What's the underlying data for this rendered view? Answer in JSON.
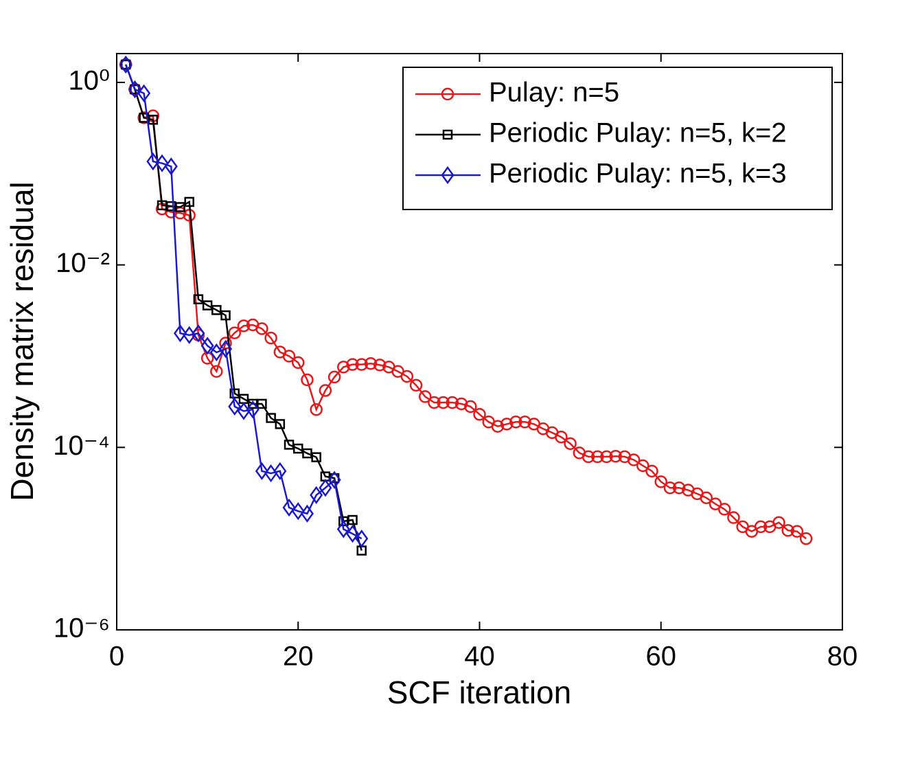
{
  "chart_data": {
    "type": "line",
    "x_label": "SCF iteration",
    "y_label": "Density matrix residual",
    "xlim": [
      0,
      80
    ],
    "xticks": [
      0,
      20,
      40,
      60,
      80
    ],
    "ylim": [
      1e-06,
      2.07
    ],
    "yticks": [
      {
        "value": 1,
        "label": "10⁰"
      },
      {
        "value": 0.01,
        "label": "10⁻²"
      },
      {
        "value": 0.0001,
        "label": "10⁻⁴"
      },
      {
        "value": 1e-06,
        "label": "10⁻⁶"
      }
    ],
    "y_scale": "log",
    "grid": false,
    "legend": "northeast",
    "series": [
      {
        "name": "Pulay: n=5",
        "color": "#e31a1c",
        "marker": "circle",
        "x": [
          1,
          2,
          3,
          4,
          5,
          6,
          7,
          8,
          9,
          10,
          11,
          12,
          13,
          14,
          15,
          16,
          17,
          18,
          19,
          20,
          21,
          22,
          23,
          24,
          25,
          26,
          27,
          28,
          29,
          30,
          31,
          32,
          33,
          34,
          35,
          36,
          37,
          38,
          39,
          40,
          41,
          42,
          43,
          44,
          45,
          46,
          47,
          48,
          49,
          50,
          51,
          52,
          53,
          54,
          55,
          56,
          57,
          58,
          59,
          60,
          61,
          62,
          63,
          64,
          65,
          66,
          67,
          68,
          69,
          70,
          71,
          72,
          73,
          74,
          75,
          76
        ],
        "values": [
          1.57,
          0.84,
          0.41,
          0.43,
          0.041,
          0.038,
          0.037,
          0.035,
          0.0017,
          0.00095,
          0.00068,
          0.00139,
          0.0018,
          0.00215,
          0.0022,
          0.002,
          0.00158,
          0.00111,
          0.001,
          0.00085,
          0.00055,
          0.00026,
          0.00042,
          0.00059,
          0.00076,
          0.00081,
          0.00081,
          0.00083,
          0.0008,
          0.00076,
          0.00068,
          0.0006,
          0.00048,
          0.00036,
          0.00031,
          0.00031,
          0.00031,
          0.0003,
          0.00028,
          0.00023,
          0.00019,
          0.00017,
          0.00018,
          0.00019,
          0.00019,
          0.00018,
          0.00016,
          0.000145,
          0.00013,
          0.00011,
          8.7e-05,
          7.9e-05,
          7.9e-05,
          7.9e-05,
          8e-05,
          7.9e-05,
          7.3e-05,
          6.3e-05,
          5.5e-05,
          4.2e-05,
          3.6e-05,
          3.6e-05,
          3.4e-05,
          3.1e-05,
          2.8e-05,
          2.4e-05,
          2.1e-05,
          1.7e-05,
          1.35e-05,
          1.2e-05,
          1.35e-05,
          1.35e-05,
          1.5e-05,
          1.23e-05,
          1.2e-05,
          1e-05
        ]
      },
      {
        "name": "Periodic Pulay: n=5, k=2",
        "color": "#000000",
        "marker": "square",
        "x": [
          1,
          2,
          3,
          4,
          5,
          6,
          7,
          8,
          9,
          10,
          11,
          12,
          13,
          14,
          15,
          16,
          17,
          18,
          19,
          20,
          21,
          22,
          23,
          24,
          25,
          26,
          27
        ],
        "values": [
          1.57,
          0.84,
          0.41,
          0.39,
          0.045,
          0.044,
          0.043,
          0.049,
          0.0042,
          0.0036,
          0.0032,
          0.0028,
          0.00039,
          0.00034,
          0.0003,
          0.0003,
          0.00021,
          0.00018,
          0.000107,
          9.7e-05,
          8.6e-05,
          7.8e-05,
          4.8e-05,
          4.6e-05,
          1.55e-05,
          1.6e-05,
          7.4e-06
        ]
      },
      {
        "name": "Periodic Pulay: n=5, k=3",
        "color": "#1a1acc",
        "marker": "diamond",
        "x": [
          1,
          2,
          3,
          4,
          5,
          6,
          7,
          8,
          9,
          10,
          11,
          12,
          13,
          14,
          15,
          16,
          17,
          18,
          19,
          20,
          21,
          22,
          23,
          24,
          25,
          26,
          27
        ],
        "values": [
          1.57,
          0.84,
          0.76,
          0.136,
          0.13,
          0.12,
          0.00178,
          0.0017,
          0.00178,
          0.0013,
          0.0011,
          0.0012,
          0.00028,
          0.00025,
          0.00026,
          5.5e-05,
          5.2e-05,
          5.5e-05,
          2.19e-05,
          2e-05,
          1.88e-05,
          3e-05,
          3.6e-05,
          4.4e-05,
          1.27e-05,
          1.13e-05,
          1e-05
        ]
      }
    ]
  }
}
